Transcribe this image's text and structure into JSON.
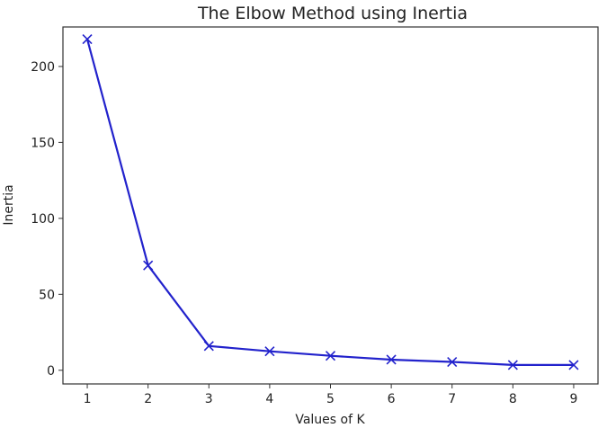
{
  "chart_data": {
    "type": "line",
    "title": "The Elbow Method using Inertia",
    "xlabel": "Values of K",
    "ylabel": "Inertia",
    "x": [
      1,
      2,
      3,
      4,
      5,
      6,
      7,
      8,
      9
    ],
    "series": [
      {
        "values": [
          218,
          69,
          16,
          12.5,
          9.5,
          7,
          5.5,
          3.5,
          3.5
        ],
        "color": "#2222cc",
        "marker": "x"
      }
    ],
    "xlim": [
      0.6,
      9.4
    ],
    "ylim": [
      -9,
      226
    ],
    "xticks": [
      "1",
      "2",
      "3",
      "4",
      "5",
      "6",
      "7",
      "8",
      "9"
    ],
    "yticks": [
      "0",
      "50",
      "100",
      "150",
      "200"
    ],
    "grid": false,
    "legend": "none"
  }
}
